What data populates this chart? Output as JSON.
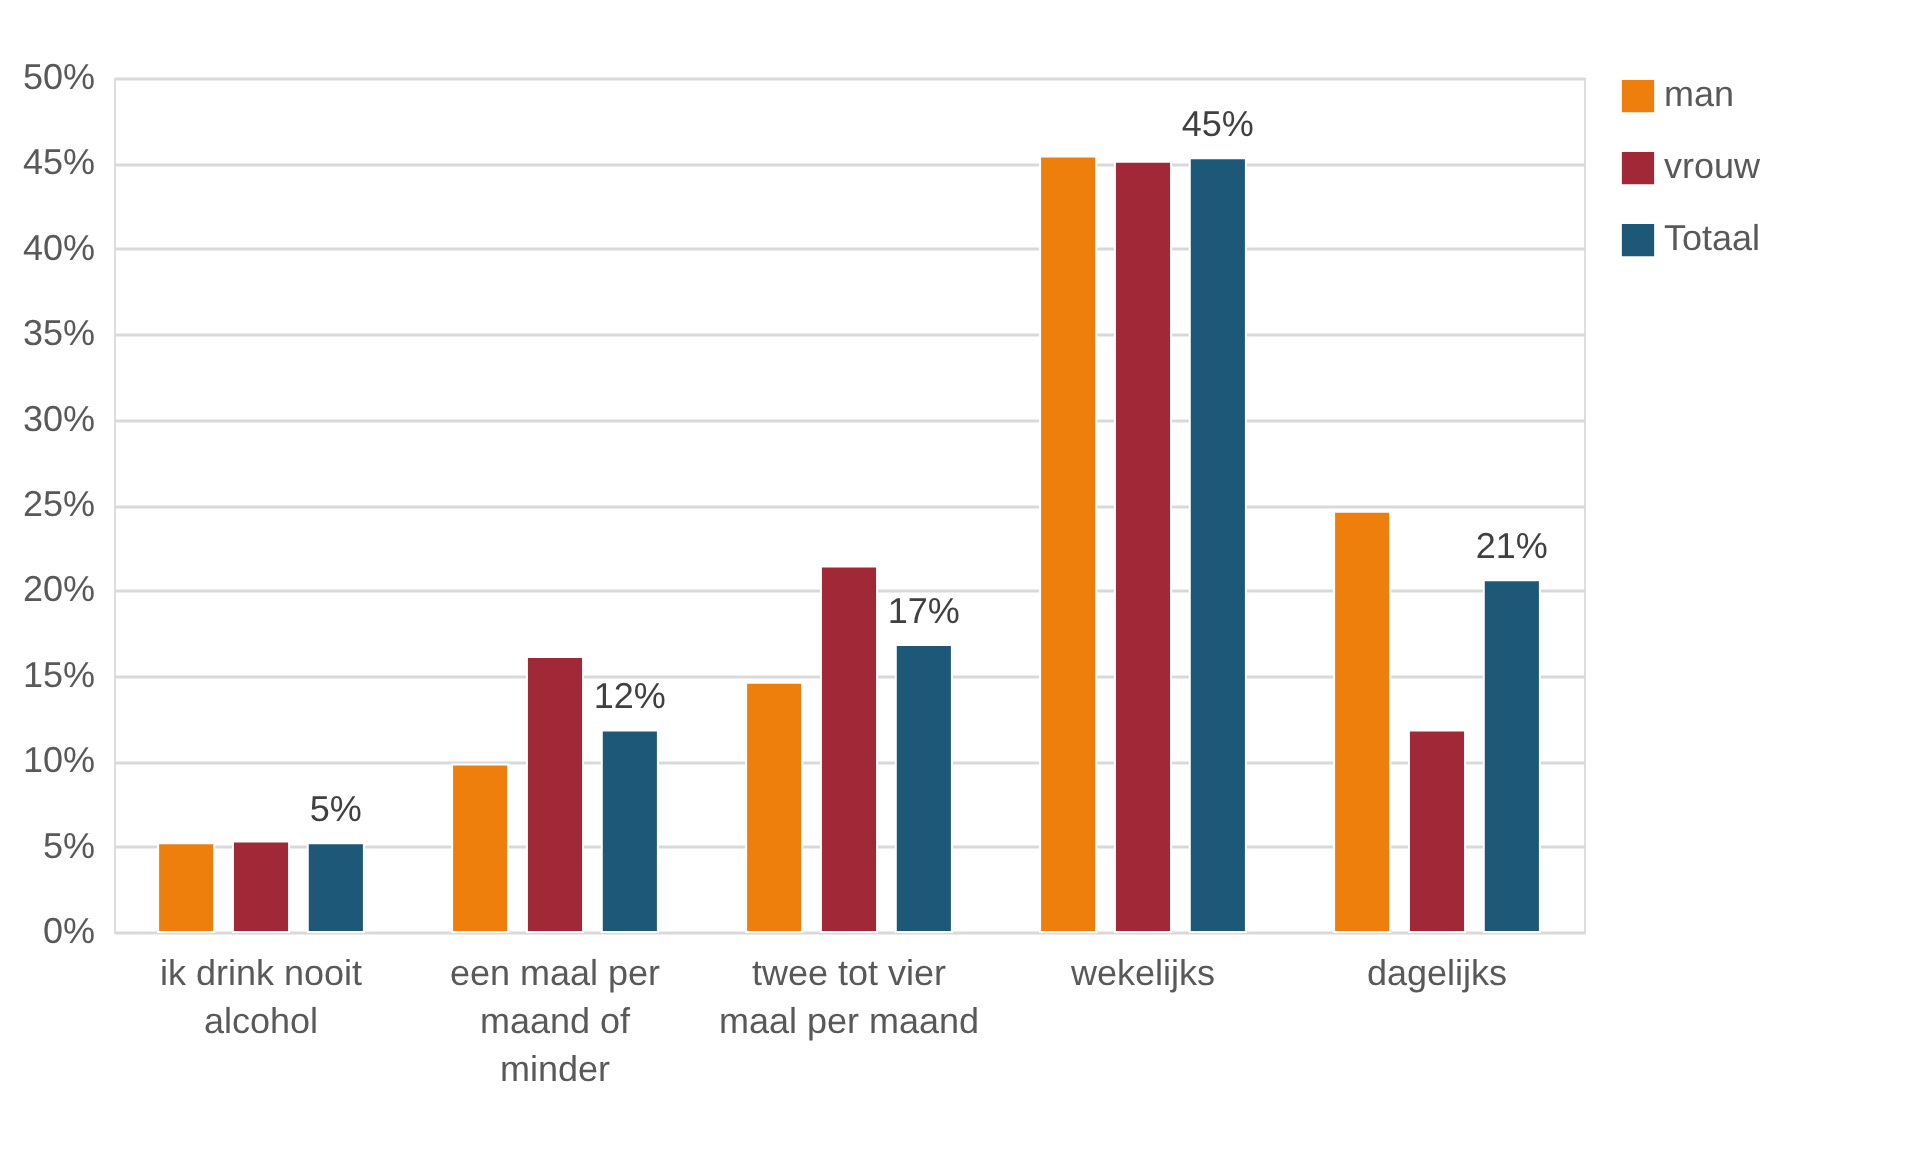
{
  "chart_data": {
    "type": "bar",
    "categories": [
      "ik drink nooit alcohol",
      "een maal per maand of minder",
      "twee tot vier maal per maand",
      "wekelijks",
      "dagelijks"
    ],
    "series": [
      {
        "name": "man",
        "color": "#ee7f0c",
        "values": [
          5.2,
          9.8,
          14.6,
          45.4,
          24.6
        ]
      },
      {
        "name": "vrouw",
        "color": "#a12837",
        "values": [
          5.3,
          16.1,
          21.4,
          45.1,
          11.8
        ]
      },
      {
        "name": "Totaal",
        "color": "#1e5878",
        "values": [
          5.2,
          11.8,
          16.8,
          45.3,
          20.6
        ],
        "value_labels": [
          "5%",
          "12%",
          "17%",
          "45%",
          "21%"
        ]
      }
    ],
    "ylim": [
      0,
      50
    ],
    "yticks": [
      {
        "value": 0,
        "label": "0%"
      },
      {
        "value": 5,
        "label": "5%"
      },
      {
        "value": 10,
        "label": "10%"
      },
      {
        "value": 15,
        "label": "15%"
      },
      {
        "value": 20,
        "label": "20%"
      },
      {
        "value": 25,
        "label": "25%"
      },
      {
        "value": 30,
        "label": "30%"
      },
      {
        "value": 35,
        "label": "35%"
      },
      {
        "value": 40,
        "label": "40%"
      },
      {
        "value": 45,
        "label": "45%"
      },
      {
        "value": 50,
        "label": "50%"
      }
    ],
    "grid": "y",
    "legend": "right"
  }
}
